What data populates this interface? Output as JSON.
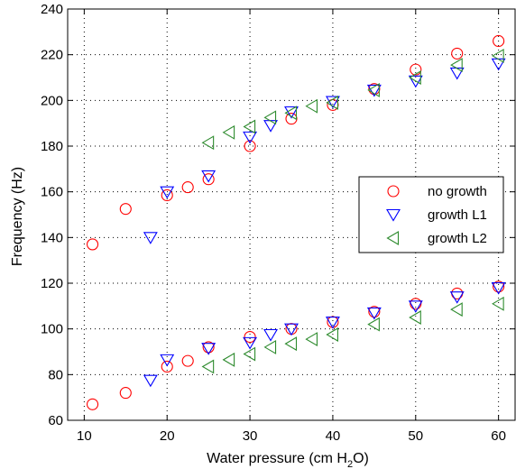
{
  "chart_data": {
    "type": "scatter",
    "xlabel_main": "Water pressure (cm H",
    "xlabel_sub": "2",
    "xlabel_end": "O)",
    "ylabel": "Frequency (Hz)",
    "xlim": [
      8,
      62
    ],
    "ylim": [
      60,
      240
    ],
    "xticks": [
      10,
      20,
      30,
      40,
      50,
      60
    ],
    "yticks": [
      60,
      80,
      100,
      120,
      140,
      160,
      180,
      200,
      220,
      240
    ],
    "grid": true,
    "legend_position": "right",
    "series": [
      {
        "name": "no growth",
        "marker": "circle",
        "color": "#ff0000",
        "points": [
          [
            11,
            137
          ],
          [
            15,
            152.5
          ],
          [
            20,
            158.5
          ],
          [
            22.5,
            162
          ],
          [
            25,
            165.5
          ],
          [
            30,
            180
          ],
          [
            35,
            192
          ],
          [
            40,
            198
          ],
          [
            45,
            205
          ],
          [
            50,
            213.5
          ],
          [
            55,
            220.5
          ],
          [
            60,
            226
          ],
          [
            11,
            67
          ],
          [
            15,
            72
          ],
          [
            20,
            83.5
          ],
          [
            22.5,
            86
          ],
          [
            25,
            92
          ],
          [
            30,
            96.5
          ],
          [
            35,
            100
          ],
          [
            40,
            103
          ],
          [
            45,
            107.5
          ],
          [
            50,
            111
          ],
          [
            55,
            115.5
          ],
          [
            60,
            118.5
          ]
        ]
      },
      {
        "name": "growth L1",
        "marker": "triangle-down",
        "color": "#0000ff",
        "points": [
          [
            18,
            140
          ],
          [
            20,
            160
          ],
          [
            25,
            167
          ],
          [
            30,
            184
          ],
          [
            32.5,
            189
          ],
          [
            35,
            195
          ],
          [
            40,
            199.5
          ],
          [
            45,
            204.5
          ],
          [
            50,
            208.5
          ],
          [
            55,
            212
          ],
          [
            60,
            216
          ],
          [
            18,
            77.5
          ],
          [
            20,
            86.5
          ],
          [
            25,
            91.5
          ],
          [
            30,
            94
          ],
          [
            32.5,
            97.5
          ],
          [
            35,
            100
          ],
          [
            40,
            103
          ],
          [
            45,
            107
          ],
          [
            50,
            110
          ],
          [
            55,
            114
          ],
          [
            60,
            118
          ]
        ]
      },
      {
        "name": "growth L2",
        "marker": "triangle-left",
        "color": "#2e8b2e",
        "points": [
          [
            25,
            181.5
          ],
          [
            27.5,
            186
          ],
          [
            30,
            188.5
          ],
          [
            32.5,
            192.5
          ],
          [
            35,
            194.5
          ],
          [
            37.5,
            197.5
          ],
          [
            40,
            199
          ],
          [
            45,
            204.5
          ],
          [
            50,
            210
          ],
          [
            55,
            215.5
          ],
          [
            60,
            219.5
          ],
          [
            25,
            83.5
          ],
          [
            27.5,
            86.5
          ],
          [
            30,
            89
          ],
          [
            32.5,
            92
          ],
          [
            35,
            93.5
          ],
          [
            37.5,
            95.5
          ],
          [
            40,
            97.5
          ],
          [
            45,
            102
          ],
          [
            50,
            105
          ],
          [
            55,
            108.5
          ],
          [
            60,
            111
          ]
        ]
      }
    ]
  }
}
